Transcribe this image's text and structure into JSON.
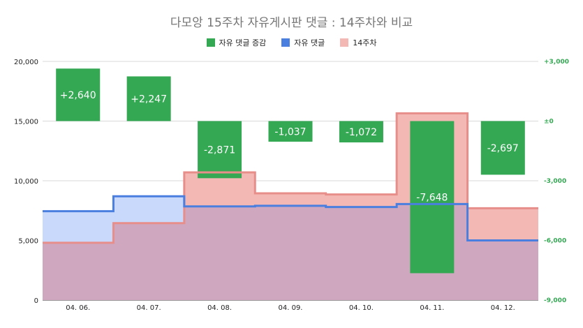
{
  "title": "다모앙 15주차 자유게시판 댓글 : 14주차와 비교",
  "colors": {
    "bar": "#34a853",
    "line_current": "#4a7fe0",
    "fill_current": "#c9d9fb",
    "line_prev": "#e88e8a",
    "fill_prev": "#f3b8b4",
    "overlap": "#cfa8bf"
  },
  "legend": [
    {
      "label": "자유 댓글 증감",
      "color": "#34a853"
    },
    {
      "label": "자유 댓글",
      "color": "#4a7fe0"
    },
    {
      "label": "14주차",
      "color": "#f3b8b4"
    }
  ],
  "chart_data": {
    "type": "bar",
    "categories": [
      "04. 06.",
      "04. 07.",
      "04. 08.",
      "04. 09.",
      "04. 10.",
      "04. 11.",
      "04. 12."
    ],
    "series": [
      {
        "name": "자유 댓글 증감",
        "type": "bar",
        "axis": "right",
        "values": [
          2640,
          2247,
          -2871,
          -1037,
          -1072,
          -7648,
          -2697
        ],
        "labels": [
          "+2,640",
          "+2,247",
          "-2,871",
          "-1,037",
          "-1,072",
          "-7,648",
          "-2,697"
        ]
      },
      {
        "name": "자유 댓글",
        "type": "stepped-area",
        "axis": "left",
        "values": [
          7450,
          8700,
          7850,
          7900,
          7800,
          8050,
          5000
        ]
      },
      {
        "name": "14주차",
        "type": "stepped-area",
        "axis": "left",
        "values": [
          4800,
          6450,
          10700,
          8950,
          8850,
          15650,
          7700
        ]
      }
    ],
    "left_axis": {
      "ylim": [
        0,
        20000
      ],
      "ticks": [
        "0",
        "5,000",
        "10,000",
        "15,000",
        "20,000"
      ]
    },
    "right_axis": {
      "ylim": [
        -9000,
        3000
      ],
      "ticks": [
        "-9,000",
        "-6,000",
        "-3,000",
        "±0",
        "+3,000"
      ]
    },
    "grid": true,
    "legend_position": "top"
  }
}
